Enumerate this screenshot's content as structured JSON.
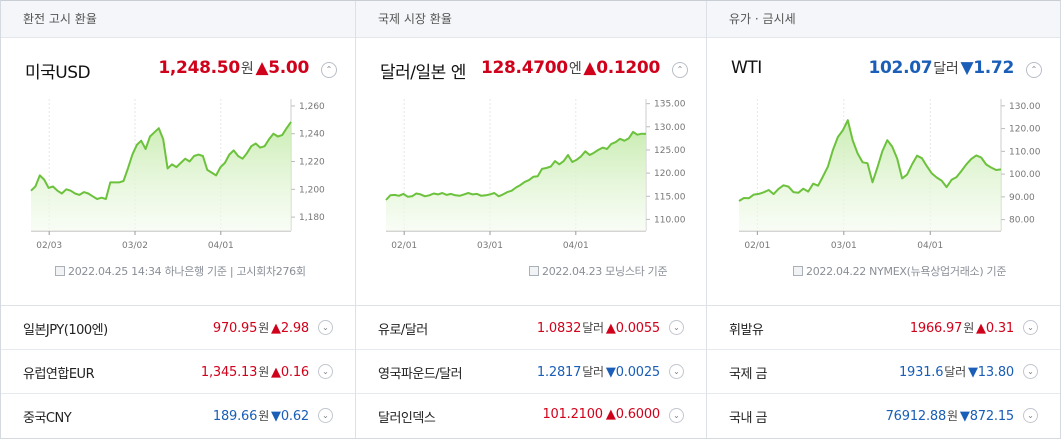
{
  "panels": [
    {
      "header": "환전 고시 환율",
      "main": {
        "name": "미국USD",
        "value": "1,248.50",
        "unit": "원",
        "arrow": "▲",
        "change": "5.00",
        "dir": "up"
      },
      "chart_data": {
        "type": "area",
        "x_ticks": [
          "02/03",
          "03/02",
          "04/01"
        ],
        "y_ticks": [
          "1,260",
          "1,240",
          "1,220",
          "1,200",
          "1,180"
        ],
        "ylim": [
          1170,
          1265
        ],
        "values": [
          1199,
          1202,
          1210,
          1207,
          1201,
          1202,
          1199,
          1197,
          1200,
          1199,
          1197,
          1196,
          1198,
          1197,
          1195,
          1193,
          1194,
          1193,
          1205,
          1205,
          1205,
          1206,
          1215,
          1225,
          1232,
          1235,
          1229,
          1238,
          1241,
          1244,
          1236,
          1215,
          1218,
          1216,
          1219,
          1222,
          1220,
          1224,
          1225,
          1224,
          1214,
          1212,
          1210,
          1216,
          1219,
          1225,
          1228,
          1224,
          1222,
          1226,
          1231,
          1233,
          1230,
          1231,
          1236,
          1240,
          1238,
          1239,
          1244,
          1248.5
        ],
        "color": "#6cc23c"
      },
      "footnote": "2022.04.25 14:34 하나은행 기준 | 고시회차276회",
      "rows": [
        {
          "name": "일본JPY(100엔)",
          "value": "970.95",
          "unit": "원",
          "arrow": "▲",
          "change": "2.98",
          "dir": "up"
        },
        {
          "name": "유럽연합EUR",
          "value": "1,345.13",
          "unit": "원",
          "arrow": "▲",
          "change": "0.16",
          "dir": "up"
        },
        {
          "name": "중국CNY",
          "value": "189.66",
          "unit": "원",
          "arrow": "▼",
          "change": "0.62",
          "dir": "down"
        }
      ]
    },
    {
      "header": "국제 시장 환율",
      "main": {
        "name": "달러/일본 엔",
        "value": "128.4700",
        "unit": "엔",
        "arrow": "▲",
        "change": "0.1200",
        "dir": "up"
      },
      "chart_data": {
        "type": "area",
        "x_ticks": [
          "02/01",
          "03/01",
          "04/01"
        ],
        "y_ticks": [
          "135.00",
          "130.00",
          "125.00",
          "120.00",
          "115.00",
          "110.00"
        ],
        "ylim": [
          107.5,
          136
        ],
        "values": [
          114.2,
          115.2,
          115.3,
          115.1,
          115.5,
          114.9,
          115.0,
          115.6,
          115.4,
          115.0,
          115.2,
          115.6,
          115.4,
          115.7,
          115.3,
          115.5,
          115.2,
          115.1,
          115.4,
          115.7,
          115.4,
          115.5,
          115.1,
          115.2,
          115.4,
          115.7,
          115.0,
          115.4,
          115.9,
          116.2,
          116.9,
          117.4,
          118.1,
          118.5,
          119.2,
          119.3,
          120.9,
          121.1,
          121.4,
          122.6,
          121.9,
          122.6,
          123.9,
          122.4,
          122.9,
          123.6,
          124.7,
          123.9,
          124.4,
          125.0,
          125.5,
          125.2,
          126.3,
          126.7,
          127.4,
          127.0,
          127.5,
          128.9,
          128.3,
          128.5,
          128.47
        ],
        "color": "#6cc23c"
      },
      "footnote": "2022.04.23 모닝스타 기준",
      "rows": [
        {
          "name": "유로/달러",
          "value": "1.0832",
          "unit": "달러",
          "arrow": "▲",
          "change": "0.0055",
          "dir": "up"
        },
        {
          "name": "영국파운드/달러",
          "value": "1.2817",
          "unit": "달러",
          "arrow": "▼",
          "change": "0.0025",
          "dir": "down"
        },
        {
          "name": "달러인덱스",
          "value": "101.2100",
          "unit": "",
          "arrow": "▲",
          "change": "0.6000",
          "dir": "up"
        }
      ]
    },
    {
      "header": "유가 · 금시세",
      "main": {
        "name": "WTI",
        "value": "102.07",
        "unit": "달러",
        "arrow": "▼",
        "change": "1.72",
        "dir": "down"
      },
      "chart_data": {
        "type": "area",
        "x_ticks": [
          "02/01",
          "03/01",
          "04/01"
        ],
        "y_ticks": [
          "130.00",
          "120.00",
          "110.00",
          "100.00",
          "90.00",
          "80.00"
        ],
        "ylim": [
          75,
          133
        ],
        "values": [
          88.2,
          89.5,
          89.4,
          91.0,
          91.3,
          92.0,
          93.0,
          91.2,
          93.5,
          95.1,
          94.5,
          92.1,
          91.8,
          93.6,
          92.3,
          95.8,
          94.9,
          99.0,
          103.4,
          110.6,
          116.3,
          119.2,
          123.7,
          114.8,
          109.1,
          105.2,
          104.8,
          96.4,
          102.9,
          110.1,
          114.9,
          112.1,
          106.8,
          98.1,
          99.8,
          104.2,
          108.1,
          107.0,
          103.5,
          100.3,
          98.5,
          97.1,
          94.3,
          97.5,
          98.7,
          101.4,
          104.3,
          106.7,
          108.2,
          107.3,
          104.2,
          102.9,
          101.8,
          102.07
        ],
        "color": "#6cc23c"
      },
      "footnote": "2022.04.22 NYMEX(뉴욕상업거래소) 기준",
      "rows": [
        {
          "name": "휘발유",
          "value": "1966.97",
          "unit": "원",
          "arrow": "▲",
          "change": "0.31",
          "dir": "up"
        },
        {
          "name": "국제 금",
          "value": "1931.6",
          "unit": "달러",
          "arrow": "▼",
          "change": "13.80",
          "dir": "down"
        },
        {
          "name": "국내 금",
          "value": "76912.88",
          "unit": "원",
          "arrow": "▼",
          "change": "872.15",
          "dir": "down"
        }
      ]
    }
  ],
  "icons": {
    "expand_main": "chevron-up-icon",
    "expand_row": "chevron-down-icon",
    "doc": "document-icon"
  }
}
